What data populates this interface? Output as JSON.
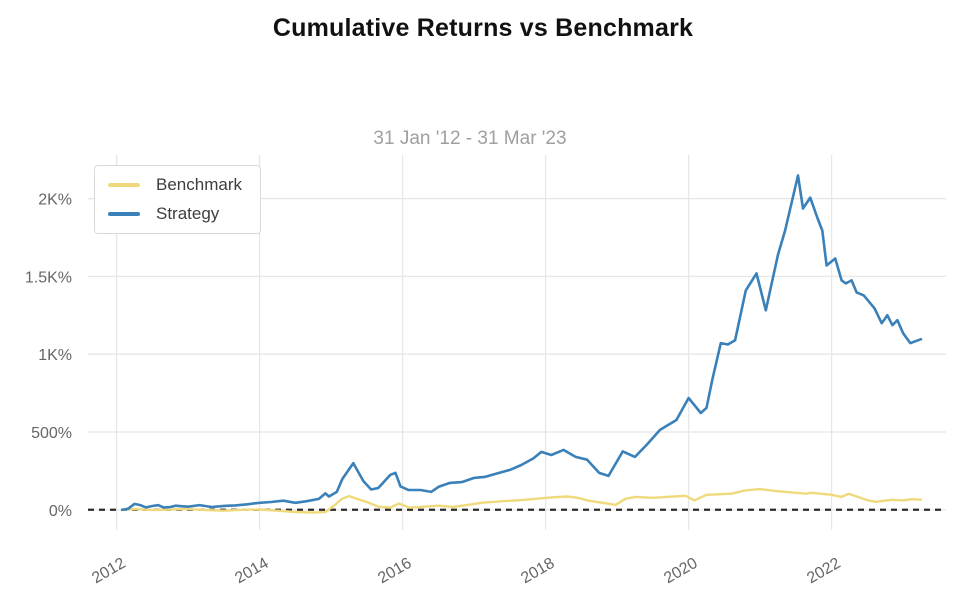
{
  "title": "Cumulative Returns vs Benchmark",
  "chart_data": {
    "type": "line",
    "title": "Cumulative Returns vs Benchmark",
    "subtitle": "31 Jan '12 - 31 Mar '23",
    "xlabel": "",
    "ylabel": "",
    "xlim": [
      2011.6,
      2023.6
    ],
    "ylim": [
      -130,
      2280
    ],
    "grid": true,
    "grid_color": "#e7e7e7",
    "tick_color": "#666666",
    "legend_position": "top-left",
    "x_ticks": [
      {
        "v": 2012,
        "label": "2012"
      },
      {
        "v": 2014,
        "label": "2014"
      },
      {
        "v": 2016,
        "label": "2016"
      },
      {
        "v": 2018,
        "label": "2018"
      },
      {
        "v": 2020,
        "label": "2020"
      },
      {
        "v": 2022,
        "label": "2022"
      }
    ],
    "y_ticks": [
      {
        "v": 0,
        "label": "0%"
      },
      {
        "v": 500,
        "label": "500%"
      },
      {
        "v": 1000,
        "label": "1K%"
      },
      {
        "v": 1500,
        "label": "1.5K%"
      },
      {
        "v": 2000,
        "label": "2K%"
      }
    ],
    "zero_line": {
      "value": 0,
      "color": "#2b2b2b",
      "dash": "6,5",
      "width": 2.2
    },
    "series": [
      {
        "name": "Benchmark",
        "color": "#efd97b",
        "width": 2.4,
        "points": [
          [
            2012.08,
            0
          ],
          [
            2012.25,
            5
          ],
          [
            2012.5,
            -2
          ],
          [
            2012.75,
            2
          ],
          [
            2013.0,
            4
          ],
          [
            2013.25,
            -2
          ],
          [
            2013.5,
            -6
          ],
          [
            2013.75,
            0
          ],
          [
            2014.0,
            2
          ],
          [
            2014.25,
            -6
          ],
          [
            2014.5,
            -14
          ],
          [
            2014.75,
            -18
          ],
          [
            2014.92,
            -15
          ],
          [
            2015.05,
            30
          ],
          [
            2015.15,
            70
          ],
          [
            2015.25,
            88
          ],
          [
            2015.4,
            65
          ],
          [
            2015.5,
            50
          ],
          [
            2015.66,
            20
          ],
          [
            2015.83,
            14
          ],
          [
            2015.95,
            40
          ],
          [
            2016.1,
            13
          ],
          [
            2016.3,
            20
          ],
          [
            2016.5,
            26
          ],
          [
            2016.7,
            18
          ],
          [
            2016.9,
            30
          ],
          [
            2017.1,
            45
          ],
          [
            2017.4,
            55
          ],
          [
            2017.66,
            62
          ],
          [
            2017.9,
            72
          ],
          [
            2018.1,
            80
          ],
          [
            2018.3,
            85
          ],
          [
            2018.45,
            77
          ],
          [
            2018.6,
            58
          ],
          [
            2018.75,
            48
          ],
          [
            2018.98,
            32
          ],
          [
            2019.12,
            71
          ],
          [
            2019.26,
            83
          ],
          [
            2019.5,
            77
          ],
          [
            2019.75,
            84
          ],
          [
            2019.96,
            90
          ],
          [
            2020.08,
            60
          ],
          [
            2020.25,
            96
          ],
          [
            2020.6,
            103
          ],
          [
            2020.8,
            125
          ],
          [
            2021.0,
            133
          ],
          [
            2021.2,
            122
          ],
          [
            2021.36,
            115
          ],
          [
            2021.64,
            103
          ],
          [
            2021.72,
            109
          ],
          [
            2022.0,
            96
          ],
          [
            2022.14,
            83
          ],
          [
            2022.24,
            103
          ],
          [
            2022.48,
            64
          ],
          [
            2022.62,
            51
          ],
          [
            2022.84,
            64
          ],
          [
            2023.0,
            60
          ],
          [
            2023.12,
            68
          ],
          [
            2023.25,
            65
          ]
        ]
      },
      {
        "name": "Strategy",
        "color": "#3a80b9",
        "width": 2.6,
        "points": [
          [
            2012.08,
            0
          ],
          [
            2012.16,
            6
          ],
          [
            2012.25,
            38
          ],
          [
            2012.33,
            30
          ],
          [
            2012.41,
            15
          ],
          [
            2012.5,
            24
          ],
          [
            2012.58,
            30
          ],
          [
            2012.66,
            14
          ],
          [
            2012.75,
            18
          ],
          [
            2012.83,
            26
          ],
          [
            2012.92,
            22
          ],
          [
            2013.0,
            20
          ],
          [
            2013.16,
            30
          ],
          [
            2013.33,
            18
          ],
          [
            2013.5,
            25
          ],
          [
            2013.66,
            28
          ],
          [
            2013.83,
            35
          ],
          [
            2014.0,
            45
          ],
          [
            2014.16,
            50
          ],
          [
            2014.33,
            58
          ],
          [
            2014.5,
            45
          ],
          [
            2014.66,
            55
          ],
          [
            2014.83,
            70
          ],
          [
            2014.92,
            105
          ],
          [
            2014.97,
            85
          ],
          [
            2015.08,
            115
          ],
          [
            2015.16,
            200
          ],
          [
            2015.31,
            300
          ],
          [
            2015.45,
            185
          ],
          [
            2015.56,
            130
          ],
          [
            2015.66,
            140
          ],
          [
            2015.83,
            225
          ],
          [
            2015.9,
            237
          ],
          [
            2015.97,
            150
          ],
          [
            2016.08,
            128
          ],
          [
            2016.25,
            127
          ],
          [
            2016.4,
            115
          ],
          [
            2016.5,
            147
          ],
          [
            2016.66,
            173
          ],
          [
            2016.83,
            178
          ],
          [
            2017.0,
            205
          ],
          [
            2017.16,
            212
          ],
          [
            2017.25,
            224
          ],
          [
            2017.5,
            256
          ],
          [
            2017.66,
            288
          ],
          [
            2017.83,
            330
          ],
          [
            2017.94,
            372
          ],
          [
            2018.08,
            352
          ],
          [
            2018.25,
            385
          ],
          [
            2018.42,
            340
          ],
          [
            2018.58,
            322
          ],
          [
            2018.75,
            237
          ],
          [
            2018.88,
            218
          ],
          [
            2019.08,
            375
          ],
          [
            2019.25,
            340
          ],
          [
            2019.42,
            420
          ],
          [
            2019.6,
            513
          ],
          [
            2019.83,
            577
          ],
          [
            2020.0,
            718
          ],
          [
            2020.17,
            622
          ],
          [
            2020.25,
            655
          ],
          [
            2020.33,
            833
          ],
          [
            2020.45,
            1071
          ],
          [
            2020.55,
            1062
          ],
          [
            2020.65,
            1090
          ],
          [
            2020.8,
            1410
          ],
          [
            2020.95,
            1519
          ],
          [
            2021.08,
            1282
          ],
          [
            2021.25,
            1640
          ],
          [
            2021.35,
            1795
          ],
          [
            2021.53,
            2148
          ],
          [
            2021.6,
            1936
          ],
          [
            2021.7,
            2006
          ],
          [
            2021.8,
            1878
          ],
          [
            2021.87,
            1795
          ],
          [
            2021.93,
            1570
          ],
          [
            2022.05,
            1615
          ],
          [
            2022.14,
            1474
          ],
          [
            2022.2,
            1455
          ],
          [
            2022.28,
            1474
          ],
          [
            2022.35,
            1397
          ],
          [
            2022.45,
            1378
          ],
          [
            2022.6,
            1295
          ],
          [
            2022.7,
            1199
          ],
          [
            2022.78,
            1250
          ],
          [
            2022.85,
            1186
          ],
          [
            2022.92,
            1218
          ],
          [
            2023.0,
            1135
          ],
          [
            2023.1,
            1071
          ],
          [
            2023.25,
            1096
          ]
        ]
      }
    ]
  }
}
